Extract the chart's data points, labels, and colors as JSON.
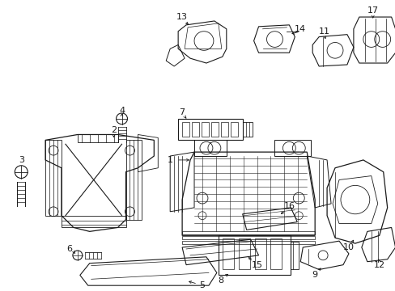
{
  "background_color": "#ffffff",
  "line_color": "#1a1a1a",
  "text_color": "#1a1a1a",
  "figsize": [
    4.89,
    3.6
  ],
  "dpi": 100,
  "xlim": [
    0,
    489
  ],
  "ylim": [
    360,
    0
  ]
}
